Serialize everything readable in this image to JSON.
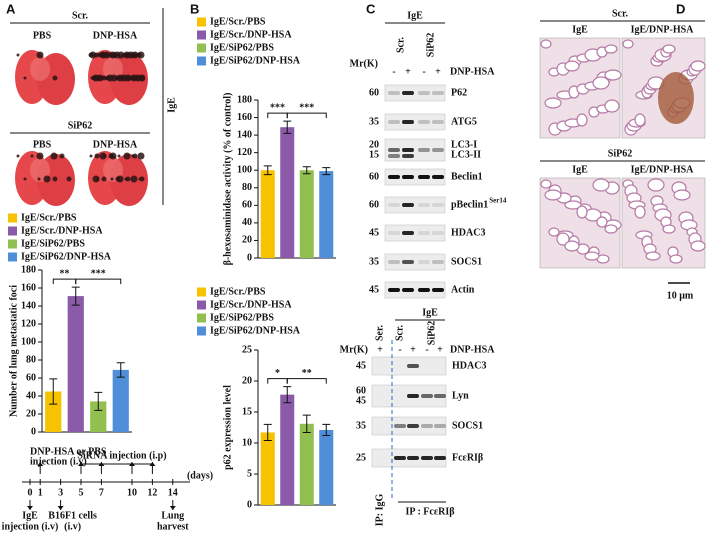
{
  "panel_labels": [
    "A",
    "B",
    "C",
    "D"
  ],
  "panel_a": {
    "lungs": {
      "top_group": "Scr.",
      "bottom_group": "SiP62",
      "conditions": [
        "PBS",
        "DNP-HSA"
      ],
      "side_label": "IgE"
    },
    "timeline": {
      "days": [
        0,
        1,
        3,
        5,
        7,
        10,
        12,
        14
      ],
      "unit": "(days)",
      "top_labels": [
        "DNP-HSA or PBS",
        "injection (i.v)",
        "SiRNA  injection (i.p)"
      ],
      "bottom_labels": [
        [
          "IgE",
          "injection (i.v)"
        ],
        [
          "B16F1 cells",
          "(i.v)"
        ],
        [
          "Lung",
          "harvest"
        ]
      ]
    }
  },
  "chart_data": [
    {
      "type": "bar",
      "y_label": "Number of lung metastatic foci",
      "categories": [
        "IgE/Scr./PBS",
        "IgE/Scr./DNP-HSA",
        "IgE/SiP62/PBS",
        "IgE/SiP62/DNP-HSA"
      ],
      "colors": [
        "#f7c200",
        "#8b5aa8",
        "#92c050",
        "#4f8fd9"
      ],
      "values": [
        45,
        151,
        34,
        69
      ],
      "errors": [
        14,
        10,
        10,
        8
      ],
      "ylim": [
        0,
        180
      ],
      "yticks": [
        0,
        20,
        40,
        60,
        80,
        100,
        120,
        140,
        160,
        180
      ],
      "significance": [
        "**",
        "***"
      ]
    },
    {
      "type": "bar",
      "y_label": "β-hexosaminidase activity  (% of control)",
      "categories": [
        "IgE/Scr./PBS",
        "IgE/Scr./DNP-HSA",
        "IgE/SiP62/PBS",
        "IgE/SiP62/DNP-HSA"
      ],
      "colors": [
        "#f7c200",
        "#8b5aa8",
        "#92c050",
        "#4f8fd9"
      ],
      "values": [
        100,
        149,
        100,
        99
      ],
      "errors": [
        5,
        7,
        4,
        4
      ],
      "ylim": [
        0,
        180
      ],
      "yticks": [
        0,
        20,
        40,
        60,
        80,
        100,
        120,
        140,
        160,
        180
      ],
      "significance": [
        "***",
        "***"
      ]
    },
    {
      "type": "bar",
      "y_label": "p62 expression level",
      "categories": [
        "IgE/Scr./PBS",
        "IgE/Scr./DNP-HSA",
        "IgE/SiP62/PBS",
        "IgE/SiP62/DNP-HSA"
      ],
      "colors": [
        "#f7c200",
        "#8b5aa8",
        "#92c050",
        "#4f8fd9"
      ],
      "values": [
        11.7,
        17.8,
        13.1,
        12.1
      ],
      "errors": [
        1.3,
        1.3,
        1.4,
        0.9
      ],
      "ylim": [
        0,
        25
      ],
      "yticks": [
        0,
        5,
        10,
        15,
        20,
        25
      ],
      "significance": [
        "*",
        "**"
      ]
    }
  ],
  "panel_c": {
    "top": {
      "header": "IgE",
      "lanes": [
        "Scr.",
        "SiP62"
      ],
      "mw_label": "Mr(K)",
      "treatment_signs": [
        "-",
        "+",
        "-",
        "+"
      ],
      "treatment": "DNP-HSA",
      "rows": [
        {
          "mw": [
            60
          ],
          "label": [
            "P62"
          ]
        },
        {
          "mw": [
            35
          ],
          "label": [
            "ATG5"
          ]
        },
        {
          "mw": [
            20,
            15
          ],
          "label": [
            "LC3-I",
            "LC3-II"
          ]
        },
        {
          "mw": [
            60
          ],
          "label": [
            "Beclin1"
          ]
        },
        {
          "mw": [
            60
          ],
          "label": [
            "pBeclin1"
          ],
          "superscript": "Ser14"
        },
        {
          "mw": [
            45
          ],
          "label": [
            "HDAC3"
          ]
        },
        {
          "mw": [
            35
          ],
          "label": [
            "SOCS1"
          ]
        },
        {
          "mw": [
            45
          ],
          "label": [
            "Actin"
          ]
        }
      ]
    },
    "bottom": {
      "header": "IgE",
      "lanes": [
        "Ser.",
        "Scr.",
        "SiP62"
      ],
      "mw_label": "Mr(K)",
      "treatment_signs": [
        "+",
        "-",
        "+",
        "-",
        "+"
      ],
      "treatment": "DNP-HSA",
      "rows": [
        {
          "mw": [
            45
          ],
          "label": [
            "HDAC3"
          ]
        },
        {
          "mw": [
            60,
            45
          ],
          "label": [
            "Lyn"
          ]
        },
        {
          "mw": [
            35
          ],
          "label": [
            "SOCS1"
          ]
        },
        {
          "mw": [
            25
          ],
          "label": [
            "FcεRIβ"
          ]
        }
      ],
      "ip_labels": [
        "IP: IgG",
        "IP : FcεRIβ"
      ]
    }
  },
  "panel_d": {
    "groups": [
      {
        "name": "Scr.",
        "conditions": [
          "IgE",
          "IgE/DNP-HSA"
        ]
      },
      {
        "name": "SiP62",
        "conditions": [
          "IgE",
          "IgE/DNP-HSA"
        ]
      }
    ],
    "scale_bar": "10 μm"
  }
}
